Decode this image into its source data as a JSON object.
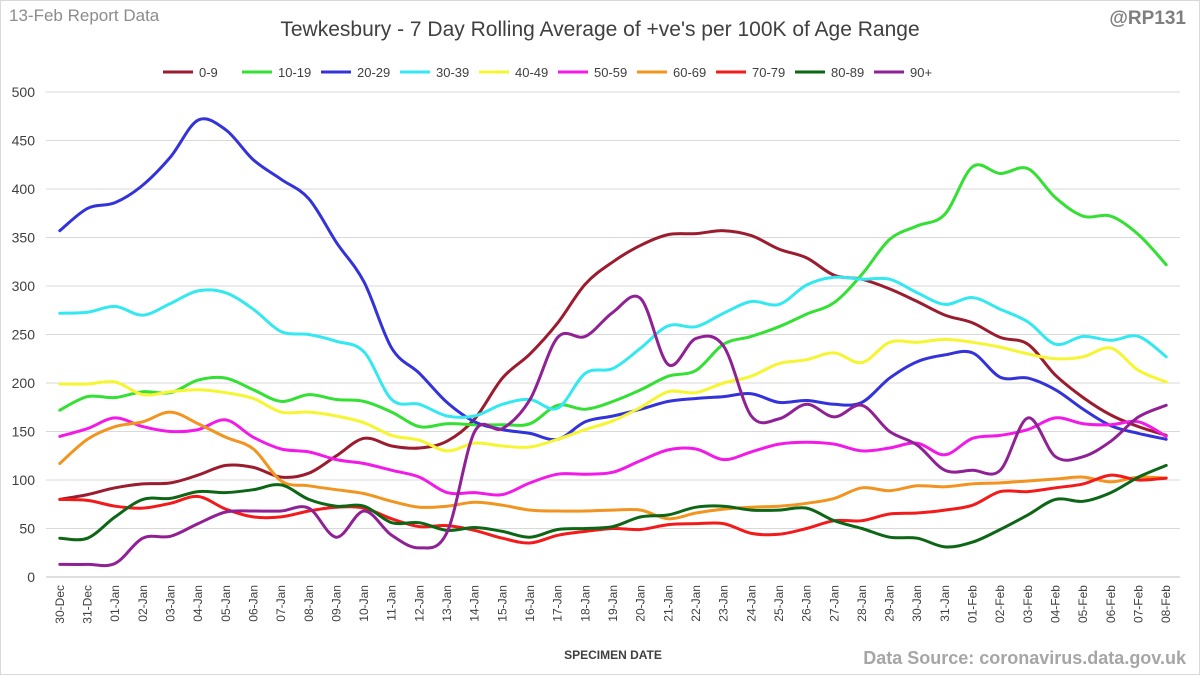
{
  "header": {
    "report_label": "13-Feb Report Data",
    "handle": "@RP131",
    "source": "Data Source: coronavirus.data.gov.uk"
  },
  "chart_data": {
    "type": "line",
    "title": "Tewkesbury - 7 Day Rolling Average of +ve's per 100K of Age Range",
    "xlabel": "SPECIMEN DATE",
    "ylabel": "",
    "ylim": [
      0,
      500
    ],
    "yticks": [
      0,
      50,
      100,
      150,
      200,
      250,
      300,
      350,
      400,
      450,
      500
    ],
    "grid": true,
    "legend_position": "top",
    "categories": [
      "30-Dec",
      "31-Dec",
      "01-Jan",
      "02-Jan",
      "03-Jan",
      "04-Jan",
      "05-Jan",
      "06-Jan",
      "07-Jan",
      "08-Jan",
      "09-Jan",
      "10-Jan",
      "11-Jan",
      "12-Jan",
      "13-Jan",
      "14-Jan",
      "15-Jan",
      "16-Jan",
      "17-Jan",
      "18-Jan",
      "19-Jan",
      "20-Jan",
      "21-Jan",
      "22-Jan",
      "23-Jan",
      "24-Jan",
      "25-Jan",
      "26-Jan",
      "27-Jan",
      "28-Jan",
      "29-Jan",
      "30-Jan",
      "31-Jan",
      "01-Feb",
      "02-Feb",
      "03-Feb",
      "04-Feb",
      "05-Feb",
      "06-Feb",
      "07-Feb",
      "08-Feb"
    ],
    "series": [
      {
        "name": "0-9",
        "color": "#9a1c2e",
        "values": [
          80,
          85,
          92,
          96,
          97,
          105,
          115,
          113,
          103,
          107,
          125,
          143,
          135,
          133,
          140,
          163,
          205,
          230,
          262,
          302,
          325,
          342,
          353,
          354,
          357,
          352,
          338,
          329,
          311,
          307,
          297,
          284,
          270,
          262,
          247,
          240,
          208,
          185,
          167,
          155,
          146
        ]
      },
      {
        "name": "10-19",
        "color": "#33e033",
        "values": [
          172,
          186,
          185,
          191,
          190,
          203,
          205,
          193,
          181,
          188,
          183,
          181,
          170,
          155,
          158,
          157,
          157,
          158,
          177,
          173,
          181,
          193,
          207,
          213,
          240,
          248,
          258,
          271,
          283,
          312,
          348,
          362,
          374,
          423,
          416,
          421,
          391,
          372,
          372,
          353,
          322
        ]
      },
      {
        "name": "20-29",
        "color": "#3333d9",
        "values": [
          357,
          380,
          386,
          404,
          433,
          471,
          461,
          430,
          410,
          390,
          345,
          304,
          236,
          210,
          180,
          160,
          152,
          148,
          142,
          160,
          166,
          173,
          181,
          184,
          186,
          189,
          180,
          182,
          178,
          180,
          205,
          222,
          229,
          231,
          206,
          205,
          193,
          173,
          156,
          148,
          142
        ]
      },
      {
        "name": "30-39",
        "color": "#33e8f0",
        "values": [
          272,
          273,
          279,
          270,
          282,
          295,
          293,
          276,
          253,
          250,
          243,
          232,
          183,
          178,
          166,
          166,
          178,
          183,
          174,
          210,
          215,
          236,
          259,
          258,
          272,
          284,
          281,
          301,
          309,
          307,
          307,
          293,
          281,
          288,
          276,
          263,
          240,
          248,
          244,
          248,
          227
        ]
      },
      {
        "name": "40-49",
        "color": "#f5f531",
        "values": [
          199,
          199,
          201,
          188,
          191,
          193,
          190,
          184,
          170,
          170,
          166,
          159,
          146,
          141,
          130,
          138,
          135,
          134,
          142,
          152,
          161,
          175,
          191,
          190,
          200,
          207,
          220,
          224,
          231,
          221,
          242,
          242,
          245,
          242,
          237,
          230,
          225,
          227,
          236,
          213,
          201
        ]
      },
      {
        "name": "50-59",
        "color": "#f11ae6",
        "values": [
          145,
          153,
          164,
          155,
          150,
          152,
          162,
          144,
          132,
          129,
          121,
          117,
          110,
          103,
          87,
          87,
          85,
          97,
          106,
          106,
          108,
          120,
          131,
          132,
          121,
          129,
          137,
          139,
          137,
          130,
          133,
          138,
          126,
          143,
          146,
          152,
          164,
          158,
          157,
          160,
          145
        ]
      },
      {
        "name": "60-69",
        "color": "#f29420",
        "values": [
          117,
          142,
          155,
          160,
          170,
          158,
          144,
          132,
          99,
          94,
          90,
          86,
          78,
          72,
          73,
          77,
          74,
          69,
          68,
          68,
          69,
          69,
          60,
          66,
          70,
          72,
          73,
          76,
          81,
          92,
          89,
          94,
          93,
          96,
          97,
          99,
          101,
          103,
          98,
          103,
          102
        ]
      },
      {
        "name": "70-79",
        "color": "#f21a1a",
        "values": [
          80,
          79,
          73,
          71,
          76,
          83,
          70,
          62,
          62,
          68,
          72,
          71,
          60,
          52,
          53,
          48,
          40,
          35,
          43,
          47,
          50,
          49,
          54,
          55,
          55,
          45,
          44,
          50,
          58,
          58,
          65,
          66,
          69,
          74,
          88,
          88,
          92,
          96,
          105,
          100,
          102
        ]
      },
      {
        "name": "80-89",
        "color": "#0d6616",
        "values": [
          40,
          40,
          62,
          80,
          81,
          88,
          87,
          90,
          95,
          80,
          73,
          73,
          56,
          56,
          48,
          51,
          47,
          41,
          49,
          50,
          52,
          62,
          64,
          72,
          73,
          69,
          69,
          71,
          58,
          50,
          41,
          40,
          31,
          36,
          49,
          64,
          80,
          78,
          87,
          103,
          115
        ]
      },
      {
        "name": "90+",
        "color": "#8f2194",
        "values": [
          13,
          13,
          14,
          40,
          42,
          55,
          67,
          68,
          68,
          71,
          41,
          68,
          43,
          30,
          46,
          150,
          153,
          183,
          247,
          248,
          273,
          287,
          219,
          246,
          238,
          166,
          163,
          178,
          165,
          177,
          150,
          136,
          110,
          110,
          110,
          164,
          124,
          124,
          140,
          165,
          177
        ]
      }
    ]
  }
}
